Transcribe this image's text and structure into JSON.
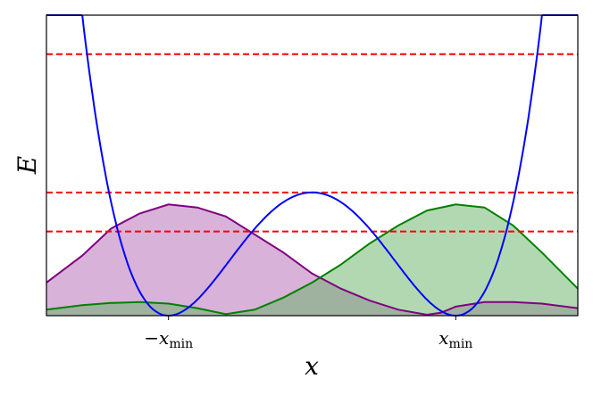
{
  "chart_data": {
    "type": "line",
    "title": "",
    "xlabel": "x",
    "ylabel": "E",
    "xlim": [
      -1.85,
      1.85
    ],
    "ylim": [
      0,
      1
    ],
    "x_ticks": [
      {
        "value": -1.0,
        "label_main": "−x",
        "label_sub": "min"
      },
      {
        "value": 1.0,
        "label_main": "x",
        "label_sub": "min"
      }
    ],
    "grid": false,
    "potential": {
      "form": "double-well",
      "minima": [
        -1.0,
        1.0
      ],
      "barrier_height": 0.41,
      "color": "#0000ff"
    },
    "energy_levels": {
      "values": [
        0.28,
        0.41,
        0.87
      ],
      "color": "#ff0000",
      "style": "dashed"
    },
    "densities": [
      {
        "color": "#800080",
        "fill": "#b266b2",
        "fill_opacity": 0.5,
        "x": [
          -1.85,
          -1.6,
          -1.4,
          -1.2,
          -1.0,
          -0.8,
          -0.6,
          -0.4,
          -0.2,
          0.0,
          0.2,
          0.4,
          0.6,
          0.8,
          0.9,
          1.0,
          1.2,
          1.4,
          1.6,
          1.85
        ],
        "y": [
          0.11,
          0.2,
          0.29,
          0.34,
          0.37,
          0.36,
          0.33,
          0.27,
          0.21,
          0.14,
          0.09,
          0.05,
          0.02,
          0.003,
          0.01,
          0.03,
          0.045,
          0.045,
          0.04,
          0.025
        ]
      },
      {
        "color": "#008000",
        "fill": "#66b266",
        "fill_opacity": 0.5,
        "x": [
          -1.85,
          -1.6,
          -1.4,
          -1.2,
          -1.0,
          -0.8,
          -0.6,
          -0.4,
          -0.2,
          0.0,
          0.2,
          0.4,
          0.6,
          0.8,
          1.0,
          1.2,
          1.4,
          1.6,
          1.85
        ],
        "y": [
          0.02,
          0.035,
          0.042,
          0.045,
          0.04,
          0.025,
          0.005,
          0.02,
          0.06,
          0.11,
          0.17,
          0.24,
          0.3,
          0.35,
          0.37,
          0.36,
          0.3,
          0.21,
          0.09
        ]
      }
    ]
  }
}
